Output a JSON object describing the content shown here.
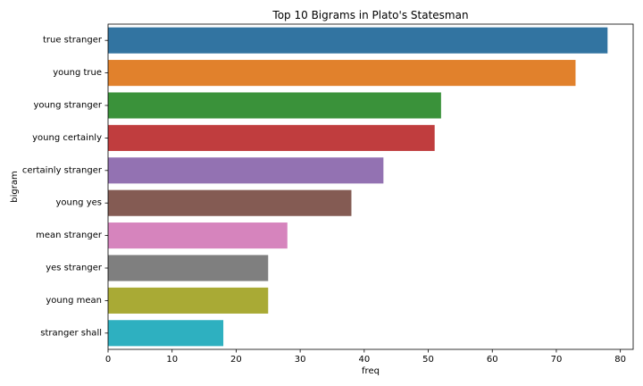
{
  "chart_data": {
    "type": "bar",
    "orientation": "horizontal",
    "title": "Top 10 Bigrams in Plato's Statesman",
    "xlabel": "freq",
    "ylabel": "bigram",
    "categories": [
      "true stranger",
      "young true",
      "young stranger",
      "young certainly",
      "certainly stranger",
      "young yes",
      "mean stranger",
      "yes stranger",
      "young mean",
      "stranger shall"
    ],
    "values": [
      78,
      73,
      52,
      51,
      43,
      38,
      28,
      25,
      25,
      18
    ],
    "colors": [
      "#3274a1",
      "#e1812c",
      "#3a923a",
      "#c03d3e",
      "#9372b2",
      "#845b53",
      "#d684bd",
      "#7f7f7f",
      "#a9aa35",
      "#2eb0c0"
    ],
    "xlim": [
      0,
      82
    ],
    "xticks": [
      0,
      10,
      20,
      30,
      40,
      50,
      60,
      70,
      80
    ],
    "grid": false,
    "legend": "none"
  }
}
